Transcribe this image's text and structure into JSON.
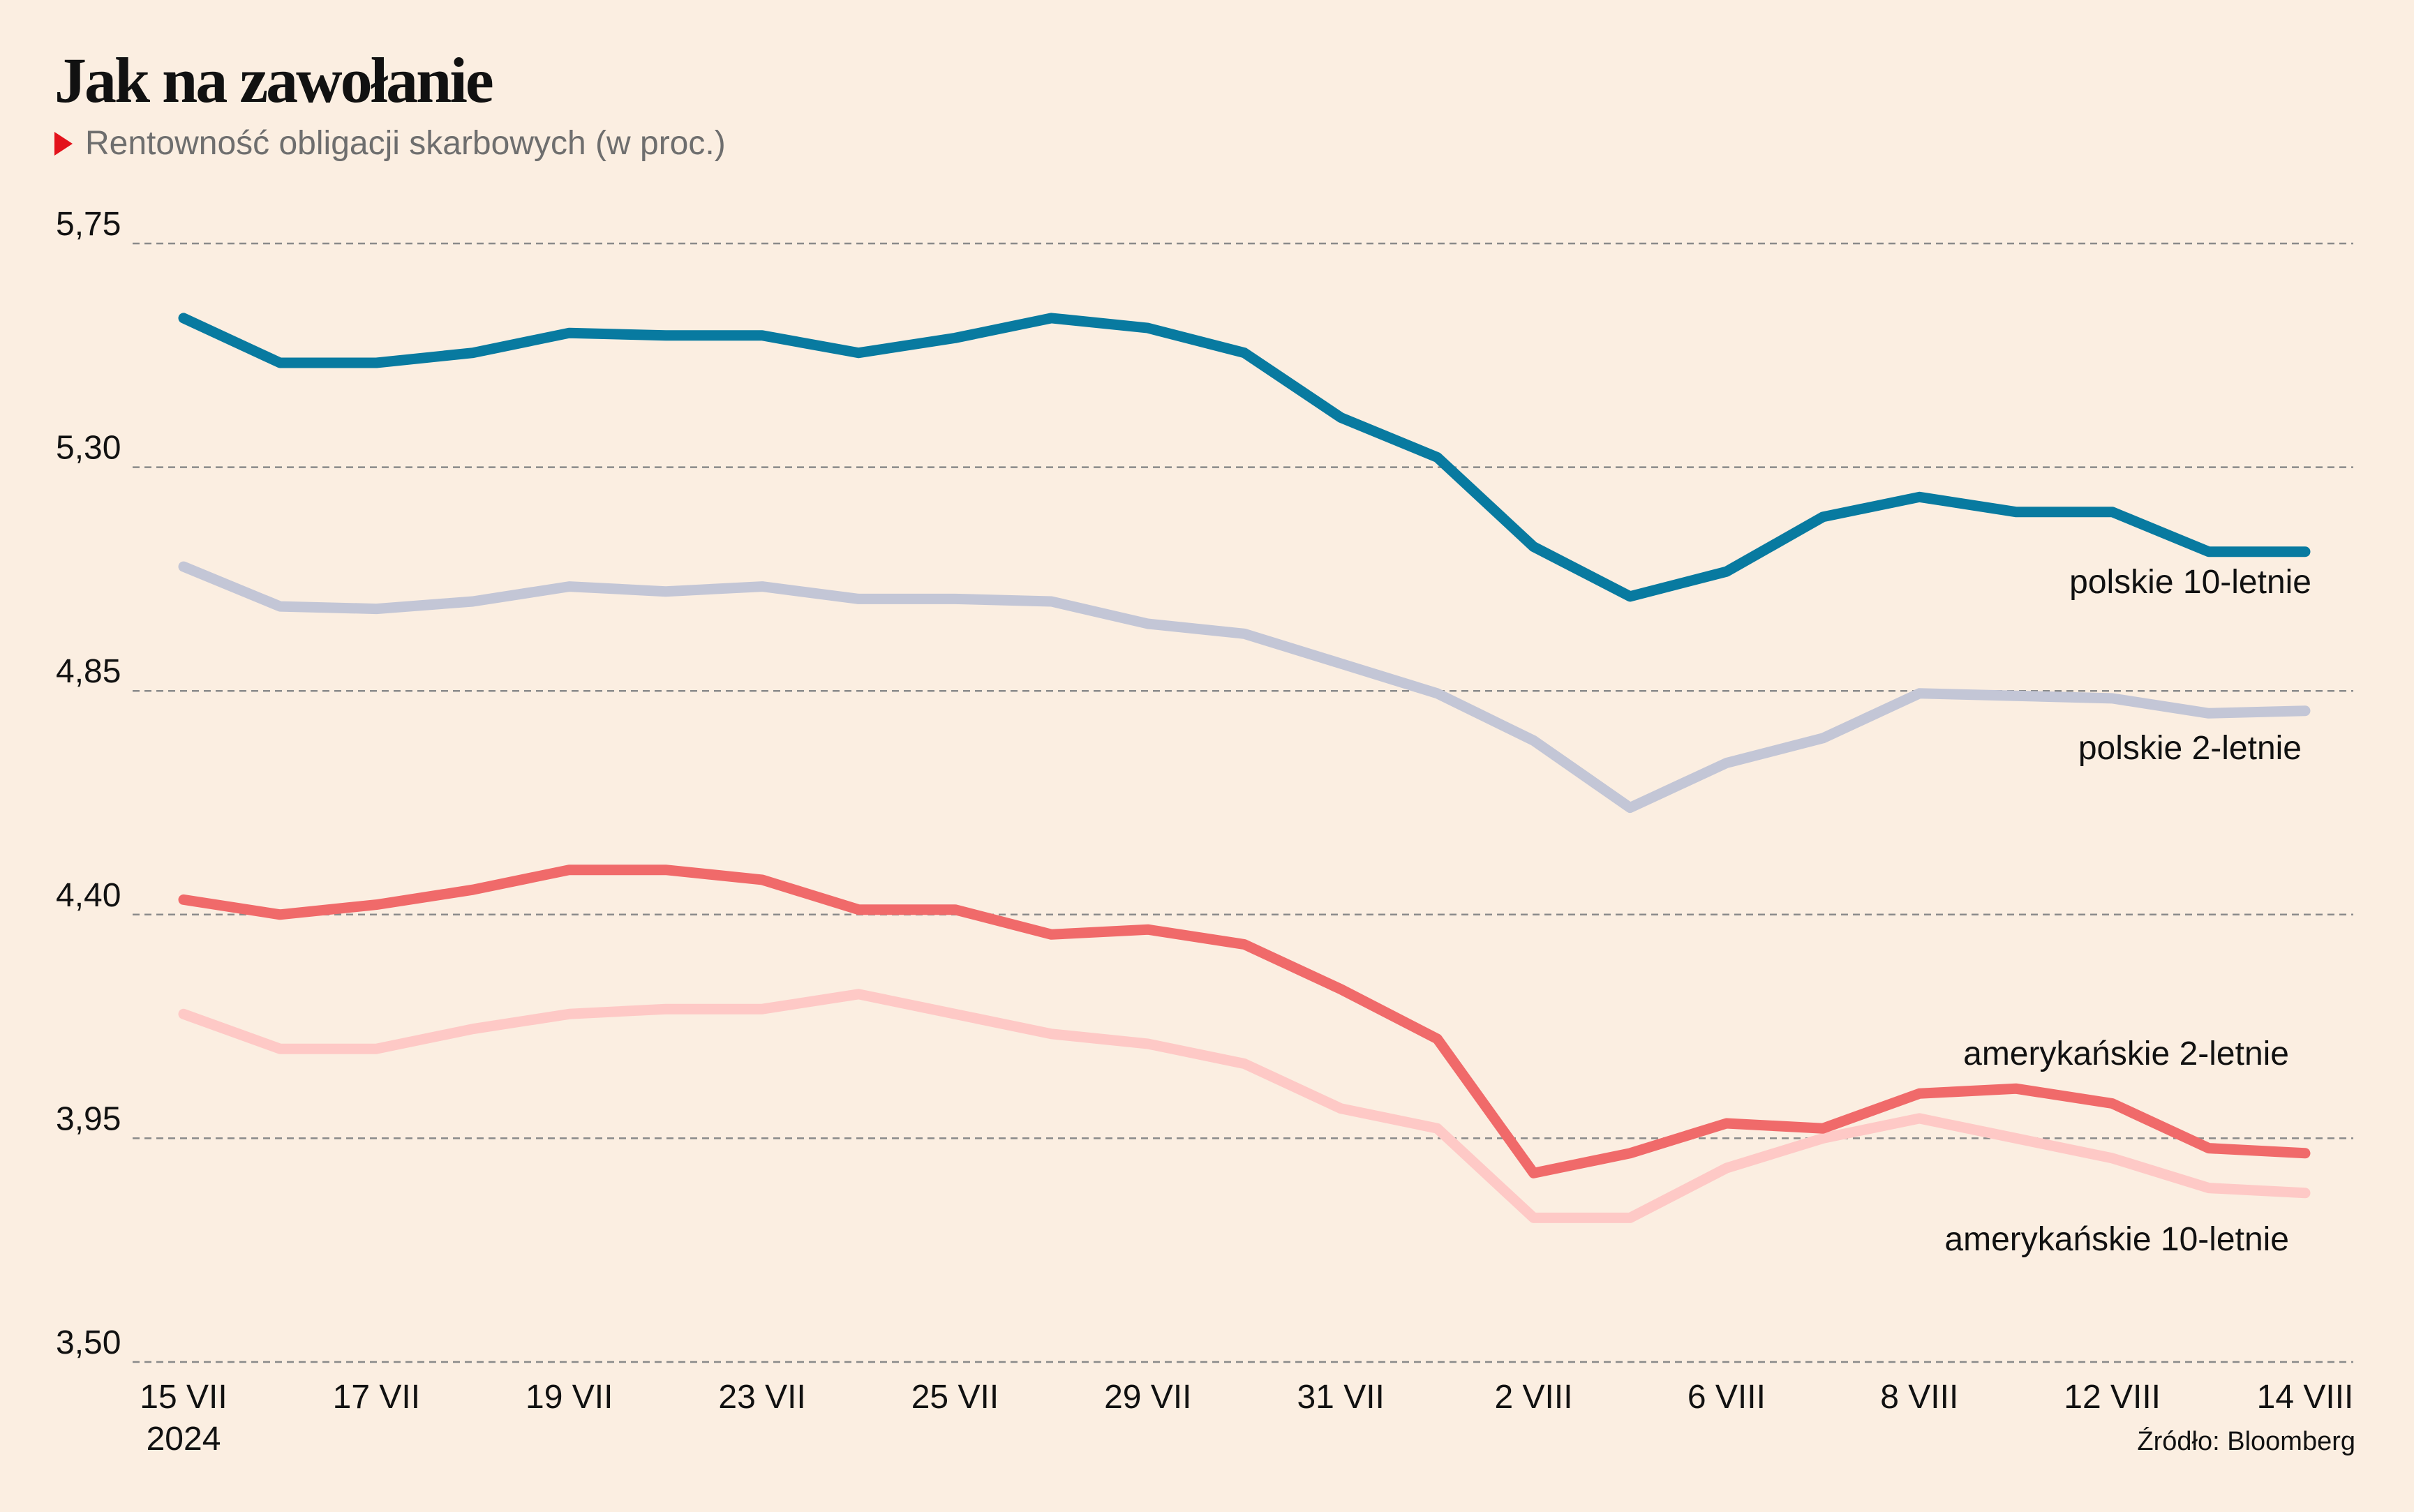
{
  "chart_data": {
    "type": "line",
    "title": "Jak na zawołanie",
    "subtitle": "Rentowność obligacji skarbowych (w proc.)",
    "source": "Źródło: Bloomberg",
    "ylim": [
      3.5,
      5.75
    ],
    "y_ticks": [
      "5,75",
      "5,30",
      "4,85",
      "4,40",
      "3,95",
      "3,50"
    ],
    "y_tick_values": [
      5.75,
      5.3,
      4.85,
      4.4,
      3.95,
      3.5
    ],
    "x": [
      "15 VII",
      "16 VII",
      "17 VII",
      "18 VII",
      "19 VII",
      "22 VII",
      "23 VII",
      "24 VII",
      "25 VII",
      "26 VII",
      "29 VII",
      "30 VII",
      "31 VII",
      "1 VIII",
      "2 VIII",
      "5 VIII",
      "6 VIII",
      "7 VIII",
      "8 VIII",
      "9 VIII",
      "12 VIII",
      "13 VIII",
      "14 VIII"
    ],
    "x_tick_labels": [
      {
        "index": 0,
        "label": "15 VII",
        "sublabel": "2024"
      },
      {
        "index": 2,
        "label": "17 VII"
      },
      {
        "index": 4,
        "label": "19 VII"
      },
      {
        "index": 6,
        "label": "23 VII"
      },
      {
        "index": 8,
        "label": "25 VII"
      },
      {
        "index": 10,
        "label": "29 VII"
      },
      {
        "index": 12,
        "label": "31 VII"
      },
      {
        "index": 14,
        "label": "2 VIII"
      },
      {
        "index": 16,
        "label": "6 VIII"
      },
      {
        "index": 18,
        "label": "8 VIII"
      },
      {
        "index": 20,
        "label": "12 VIII"
      },
      {
        "index": 22,
        "label": "14 VIII"
      }
    ],
    "grid": true,
    "legend": "direct labels at right",
    "series": [
      {
        "name": "polskie 10-letnie",
        "color": "#087aa0",
        "values": [
          5.6,
          5.51,
          5.51,
          5.53,
          5.57,
          5.565,
          5.565,
          5.53,
          5.56,
          5.6,
          5.58,
          5.53,
          5.4,
          5.32,
          5.14,
          5.04,
          5.09,
          5.2,
          5.24,
          5.21,
          5.21,
          5.13,
          5.13
        ]
      },
      {
        "name": "polskie 2-letnie",
        "color": "#c3c6d6",
        "values": [
          5.1,
          5.02,
          5.015,
          5.03,
          5.06,
          5.05,
          5.06,
          5.035,
          5.035,
          5.03,
          4.985,
          4.965,
          4.905,
          4.845,
          4.75,
          4.615,
          4.705,
          4.755,
          4.845,
          4.84,
          4.835,
          4.805,
          4.81
        ]
      },
      {
        "name": "amerykańskie 2-letnie",
        "color": "#f06a6a",
        "values": [
          4.43,
          4.4,
          4.42,
          4.45,
          4.49,
          4.49,
          4.47,
          4.41,
          4.41,
          4.36,
          4.37,
          4.34,
          4.25,
          4.15,
          3.88,
          3.92,
          3.98,
          3.97,
          4.04,
          4.05,
          4.02,
          3.93,
          3.92
        ]
      },
      {
        "name": "amerykańskie 10-letnie",
        "color": "#fec9c6",
        "values": [
          4.2,
          4.13,
          4.13,
          4.17,
          4.2,
          4.21,
          4.21,
          4.24,
          4.2,
          4.16,
          4.14,
          4.1,
          4.01,
          3.97,
          3.79,
          3.79,
          3.89,
          3.95,
          3.99,
          3.95,
          3.91,
          3.85,
          3.84
        ]
      }
    ]
  },
  "colors": {
    "background": "#fbeee1",
    "grid": "#8a8a8a",
    "subtitle_marker": "#e3121b"
  }
}
